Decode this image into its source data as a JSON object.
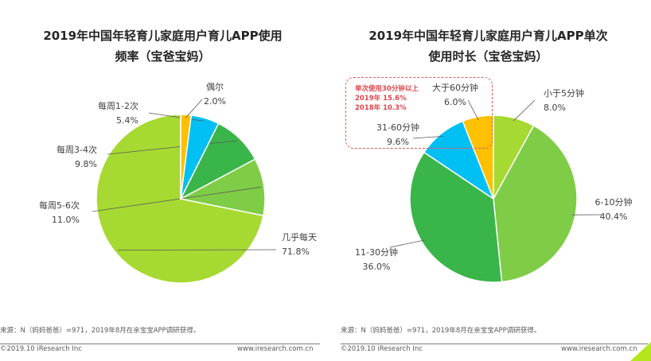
{
  "chart_data": [
    {
      "type": "pie",
      "title": "2019年中国年轻育儿家庭用户育儿APP使用频率（宝爸宝妈）",
      "title_lines": [
        "2019年中国年轻育儿家庭用户育儿APP使用",
        "频率（宝爸宝妈）"
      ],
      "slices": [
        {
          "label": "几乎每天",
          "value": 71.8,
          "text": "71.8%",
          "color": "#a6d931"
        },
        {
          "label": "每周5-6次",
          "value": 11.0,
          "text": "11.0%",
          "color": "#7fcc46"
        },
        {
          "label": "每周3-4次",
          "value": 9.8,
          "text": "9.8%",
          "color": "#3ab54a"
        },
        {
          "label": "每周1-2次",
          "value": 5.4,
          "text": "5.4%",
          "color": "#00bff3"
        },
        {
          "label": "偶尔",
          "value": 2.0,
          "text": "2.0%",
          "color": "#ffc000"
        }
      ]
    },
    {
      "type": "pie",
      "title": "2019年中国年轻育儿家庭用户育儿APP单次使用时长（宝爸宝妈）",
      "title_lines": [
        "2019年中国年轻育儿家庭用户育儿APP单次",
        "使用时长（宝爸宝妈）"
      ],
      "slices": [
        {
          "label": "小于5分钟",
          "value": 8.0,
          "text": "8.0%",
          "color": "#a6d931"
        },
        {
          "label": "6-10分钟",
          "value": 40.4,
          "text": "40.4%",
          "color": "#7fcc46"
        },
        {
          "label": "11-30分钟",
          "value": 36.0,
          "text": "36.0%",
          "color": "#3ab54a"
        },
        {
          "label": "31-60分钟",
          "value": 9.6,
          "text": "9.6%",
          "color": "#00bff3"
        },
        {
          "label": "大于60分钟",
          "value": 6.0,
          "text": "6.0%",
          "color": "#ffc000"
        }
      ],
      "callout": [
        "单次使用30分钟以上",
        "2019年 15.6%",
        "2018年 10.3%"
      ]
    }
  ],
  "footer": {
    "source": "来源：N（妈妈爸爸）=971，2019年8月在亲宝宝APP调研获得。",
    "copyright": "©2019.10 iResearch Inc",
    "website": "www.iresearch.com.cn"
  },
  "colors": {
    "callout_border": "#e05a5a",
    "callout_text": "#e0454a",
    "corner_accent": "#b5e61d"
  }
}
